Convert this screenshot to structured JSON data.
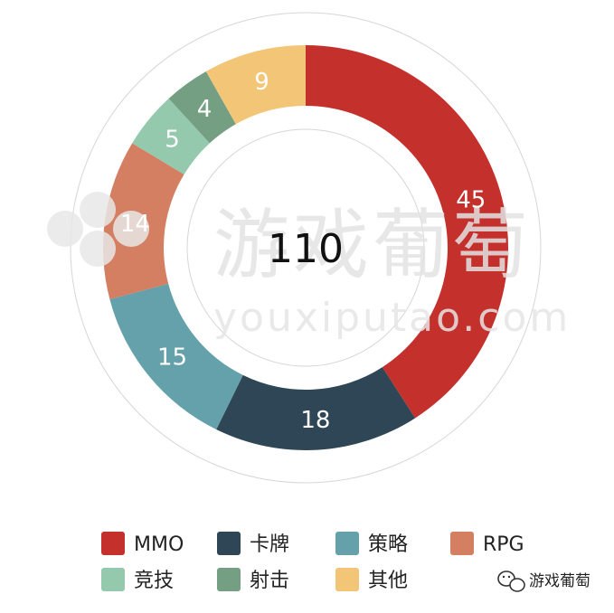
{
  "chart_data": {
    "type": "pie",
    "variant": "donut",
    "total": "110",
    "segments": [
      {
        "name": "MMO",
        "value": 45,
        "color": "#c4312d"
      },
      {
        "name": "卡牌",
        "value": 18,
        "color": "#2e4655"
      },
      {
        "name": "策略",
        "value": 15,
        "color": "#64a1aa"
      },
      {
        "name": "RPG",
        "value": 14,
        "color": "#d47f61"
      },
      {
        "name": "竞技",
        "value": 5,
        "color": "#94c9ad"
      },
      {
        "name": "射击",
        "value": 4,
        "color": "#749f82"
      },
      {
        "name": "其他",
        "value": 9,
        "color": "#f3c577"
      }
    ],
    "legend_position": "bottom"
  },
  "watermark": {
    "cn": "游戏葡萄",
    "en": "youxiputao.com"
  },
  "source": {
    "name": "游戏葡萄",
    "icon": "wechat-icon"
  }
}
